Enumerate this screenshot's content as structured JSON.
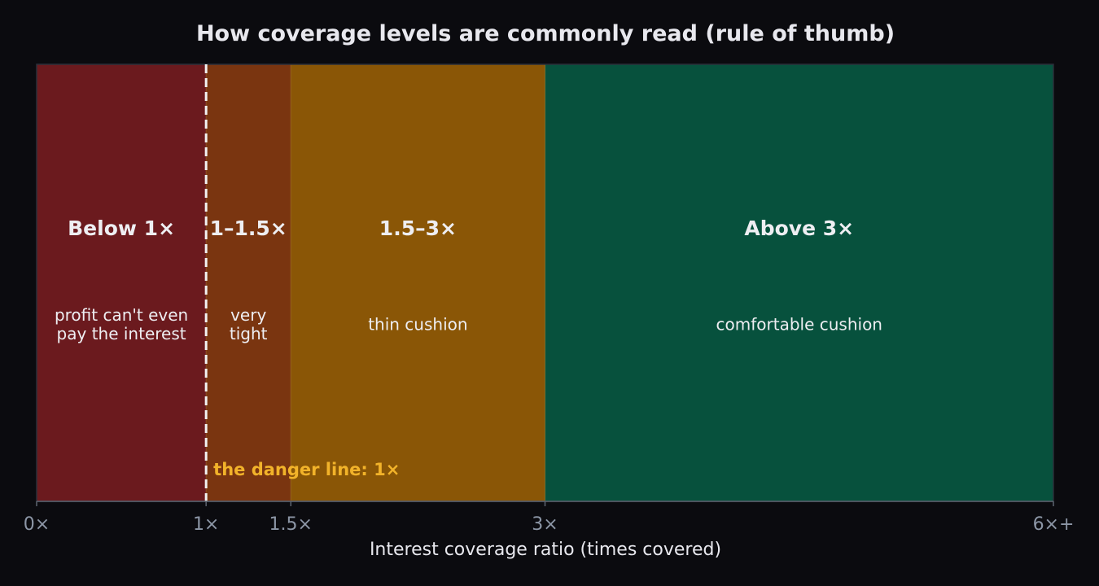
{
  "chart_data": {
    "type": "bar",
    "title": "How coverage levels are commonly read (rule of thumb)",
    "xlabel": "Interest coverage ratio (times covered)",
    "ylabel": "",
    "xlim": [
      0,
      6
    ],
    "grid": false,
    "zones": [
      {
        "from": 0,
        "to": 1,
        "label": "Below 1×",
        "description": [
          "profit can't even",
          "pay the interest"
        ],
        "color": "#6b1a1e"
      },
      {
        "from": 1,
        "to": 1.5,
        "label": "1–1.5×",
        "description": [
          "very",
          "tight"
        ],
        "color": "#7a3510"
      },
      {
        "from": 1.5,
        "to": 3,
        "label": "1.5–3×",
        "description": [
          "thin cushion"
        ],
        "color": "#8a5606"
      },
      {
        "from": 3,
        "to": 6,
        "label": "Above 3×",
        "description": [
          "comfortable cushion"
        ],
        "color": "#07513d"
      }
    ],
    "ticks": [
      {
        "value": 0,
        "label": "0×"
      },
      {
        "value": 1,
        "label": "1×"
      },
      {
        "value": 1.5,
        "label": "1.5×"
      },
      {
        "value": 3,
        "label": "3×"
      },
      {
        "value": 6,
        "label": "6×+"
      }
    ],
    "threshold": {
      "value": 1,
      "label": "the danger line: 1×",
      "color": "#f2b32a"
    }
  },
  "colors": {
    "background": "#0b0b0f",
    "text": "#e8e8ee",
    "tick_text": "#8c96a6",
    "axis": "#5d6470",
    "threshold_line": "#f2f2f2",
    "highlight": "#f2b32a"
  }
}
